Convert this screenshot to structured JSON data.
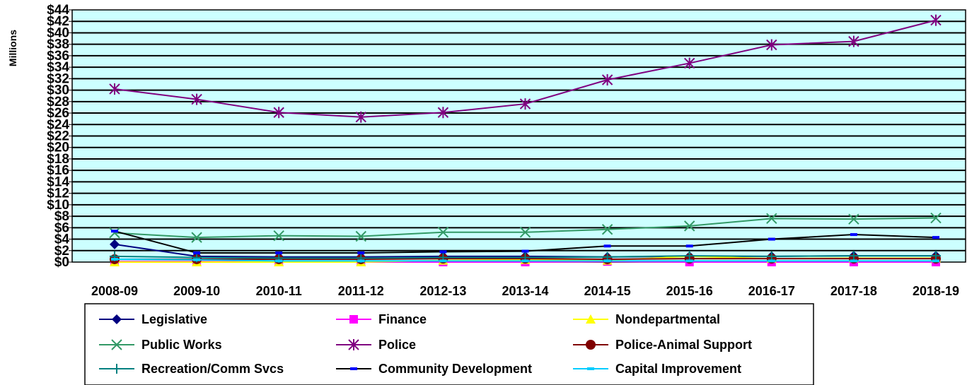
{
  "chart_data": {
    "type": "line",
    "ylabel": "Millions",
    "ylim": [
      0,
      44
    ],
    "y_tick_step": 2,
    "y_tick_labels": [
      "$0",
      "$2",
      "$4",
      "$6",
      "$8",
      "$10",
      "$12",
      "$14",
      "$16",
      "$18",
      "$20",
      "$22",
      "$24",
      "$26",
      "$28",
      "$30",
      "$32",
      "$34",
      "$36",
      "$38",
      "$40",
      "$42",
      "$44"
    ],
    "grid": true,
    "legend_position": "bottom",
    "plot_background": "#ccffff",
    "categories": [
      "2008-09",
      "2009-10",
      "2010-11",
      "2011-12",
      "2012-13",
      "2013-14",
      "2014-15",
      "2015-16",
      "2016-17",
      "2017-18",
      "2018-19"
    ],
    "series": [
      {
        "name": "Legislative",
        "color": "#000080",
        "marker": "diamond",
        "values": [
          3.1,
          1.0,
          0.9,
          0.9,
          1.0,
          1.0,
          0.9,
          1.0,
          1.0,
          1.1,
          1.1
        ]
      },
      {
        "name": "Finance",
        "color": "#ff00ff",
        "marker": "square",
        "values": [
          0.1,
          0.1,
          0.0,
          0.0,
          0.0,
          0.0,
          0.1,
          0.0,
          0.0,
          0.0,
          0.0
        ]
      },
      {
        "name": "Nondepartmental",
        "color": "#ffff00",
        "marker": "triangle",
        "values": [
          0.0,
          0.0,
          0.0,
          0.0,
          0.3,
          0.4,
          0.3,
          1.0,
          0.6,
          0.7,
          0.7
        ]
      },
      {
        "name": "Public Works",
        "color": "#339966",
        "marker": "x",
        "values": [
          5.1,
          4.3,
          4.6,
          4.5,
          5.2,
          5.2,
          5.7,
          6.3,
          7.6,
          7.5,
          7.7
        ]
      },
      {
        "name": "Police",
        "color": "#800080",
        "marker": "star",
        "values": [
          30.2,
          28.4,
          26.1,
          25.3,
          26.1,
          27.6,
          31.8,
          34.7,
          37.9,
          38.5,
          42.2
        ]
      },
      {
        "name": "Police-Animal Support",
        "color": "#800000",
        "marker": "circle",
        "values": [
          0.5,
          0.5,
          0.5,
          0.5,
          0.6,
          0.6,
          0.5,
          0.6,
          0.6,
          0.6,
          0.6
        ]
      },
      {
        "name": "Recreation/Comm Svcs",
        "color": "#008080",
        "marker": "plus",
        "values": [
          1.0,
          0.8,
          0.7,
          0.7,
          0.8,
          0.8,
          0.9,
          1.1,
          1.0,
          1.1,
          1.1
        ]
      },
      {
        "name": "Community Development",
        "color": "#000000",
        "marker": "dash",
        "markerColor": "#0000ff",
        "values": [
          5.4,
          1.6,
          1.6,
          1.6,
          1.8,
          1.9,
          2.8,
          2.8,
          4.0,
          4.8,
          4.3
        ]
      },
      {
        "name": "Capital Improvement",
        "color": "#00ccff",
        "marker": "dash",
        "values": [
          0.5,
          0.4,
          0.2,
          0.2,
          0.2,
          0.2,
          0.2,
          0.2,
          0.2,
          0.2,
          0.2
        ]
      }
    ]
  }
}
